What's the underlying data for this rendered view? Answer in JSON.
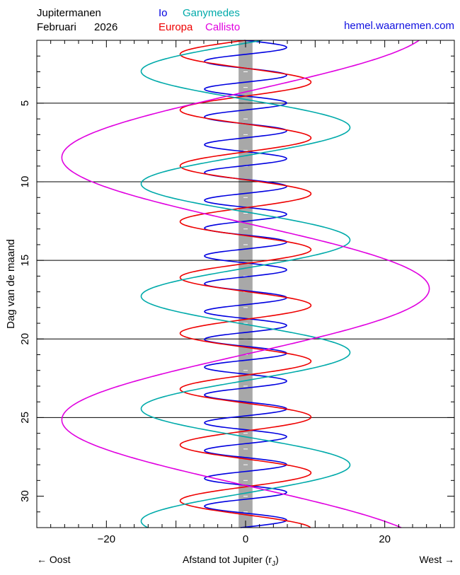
{
  "header": {
    "title": "Jupitermanen",
    "month": "Februari",
    "year": "2026",
    "site": "hemel.waarnemen.com",
    "site_color": "#1010e0"
  },
  "legend": [
    {
      "name": "Io",
      "color": "#0000e0"
    },
    {
      "name": "Ganymedes",
      "color": "#00aaaa"
    },
    {
      "name": "Europa",
      "color": "#ee0000"
    },
    {
      "name": "Callisto",
      "color": "#e000e0"
    }
  ],
  "footer": {
    "east": "← Oost",
    "west": "West →",
    "xlabel": "Afstand tot Jupiter (r",
    "xlabel_sub": "J",
    "xlabel_close": ")"
  },
  "chart_data": {
    "type": "line",
    "title": "Jupitermanen Februari 2026",
    "xlabel": "Afstand tot Jupiter (rJ)",
    "ylabel": "Dag van de maand",
    "xlim": [
      -30,
      30
    ],
    "ylim": [
      1,
      32
    ],
    "y_inverted": true,
    "xticks": [
      -20,
      0,
      20
    ],
    "yticks": [
      5,
      10,
      15,
      20,
      25,
      30
    ],
    "reference_lines_y": [
      5,
      10,
      15,
      20,
      25
    ],
    "jupiter_band_halfwidth": 1,
    "series": [
      {
        "name": "Io",
        "color": "#0000e0",
        "amplitude": 5.9,
        "period_days": 1.769,
        "phase_day": 1.45
      },
      {
        "name": "Europa",
        "color": "#ee0000",
        "amplitude": 9.4,
        "period_days": 3.551,
        "phase_day": 3.66
      },
      {
        "name": "Ganymedes",
        "color": "#00aaaa",
        "amplitude": 15.0,
        "period_days": 7.155,
        "phase_day": 6.55
      },
      {
        "name": "Callisto",
        "color": "#e000e0",
        "amplitude": 26.4,
        "period_days": 16.689,
        "phase_day": 16.8
      }
    ]
  }
}
